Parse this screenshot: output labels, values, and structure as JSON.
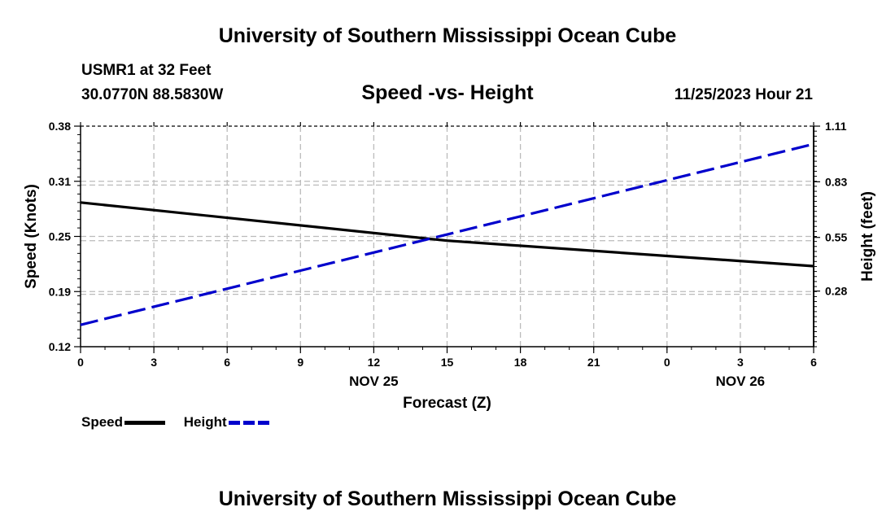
{
  "header": {
    "title": "University of Southern Mississippi Ocean Cube",
    "station": "USMR1 at 32 Feet",
    "coords": "30.0770N  88.5830W",
    "subtitle": "Speed -vs- Height",
    "datetime": "11/25/2023 Hour 21"
  },
  "footer": {
    "title": "University of Southern Mississippi Ocean Cube"
  },
  "legend": {
    "speed_label": "Speed",
    "height_label": "Height"
  },
  "colors": {
    "speed": "#000000",
    "height": "#0000cc",
    "grid": "#bbbbbb"
  },
  "chart_data": {
    "type": "line",
    "title": "Speed -vs- Height",
    "xlabel": "Forecast (Z)",
    "ylabel": "Speed (Knots)",
    "y2label": "Height (feet)",
    "x": [
      0,
      15,
      30
    ],
    "x_tick_labels": [
      "0",
      "3",
      "6",
      "9",
      "12",
      "15",
      "18",
      "21",
      "0",
      "3",
      "6"
    ],
    "x_date_labels": [
      {
        "label": "NOV 25",
        "at": 12
      },
      {
        "label": "NOV 26",
        "at": 27
      }
    ],
    "ylim": [
      0.12,
      0.38
    ],
    "y_ticks": [
      "0.12",
      "0.19",
      "0.25",
      "0.31",
      "0.38"
    ],
    "y2lim": [
      0.0,
      1.11
    ],
    "y2_ticks": [
      "0.28",
      "0.55",
      "0.83",
      "1.11"
    ],
    "grid": true,
    "series": [
      {
        "name": "Speed",
        "axis": "left",
        "x": [
          0,
          15,
          30
        ],
        "values": [
          0.29,
          0.245,
          0.215
        ]
      },
      {
        "name": "Height",
        "axis": "right",
        "x": [
          0,
          30
        ],
        "values": [
          0.11,
          1.02
        ]
      }
    ]
  }
}
